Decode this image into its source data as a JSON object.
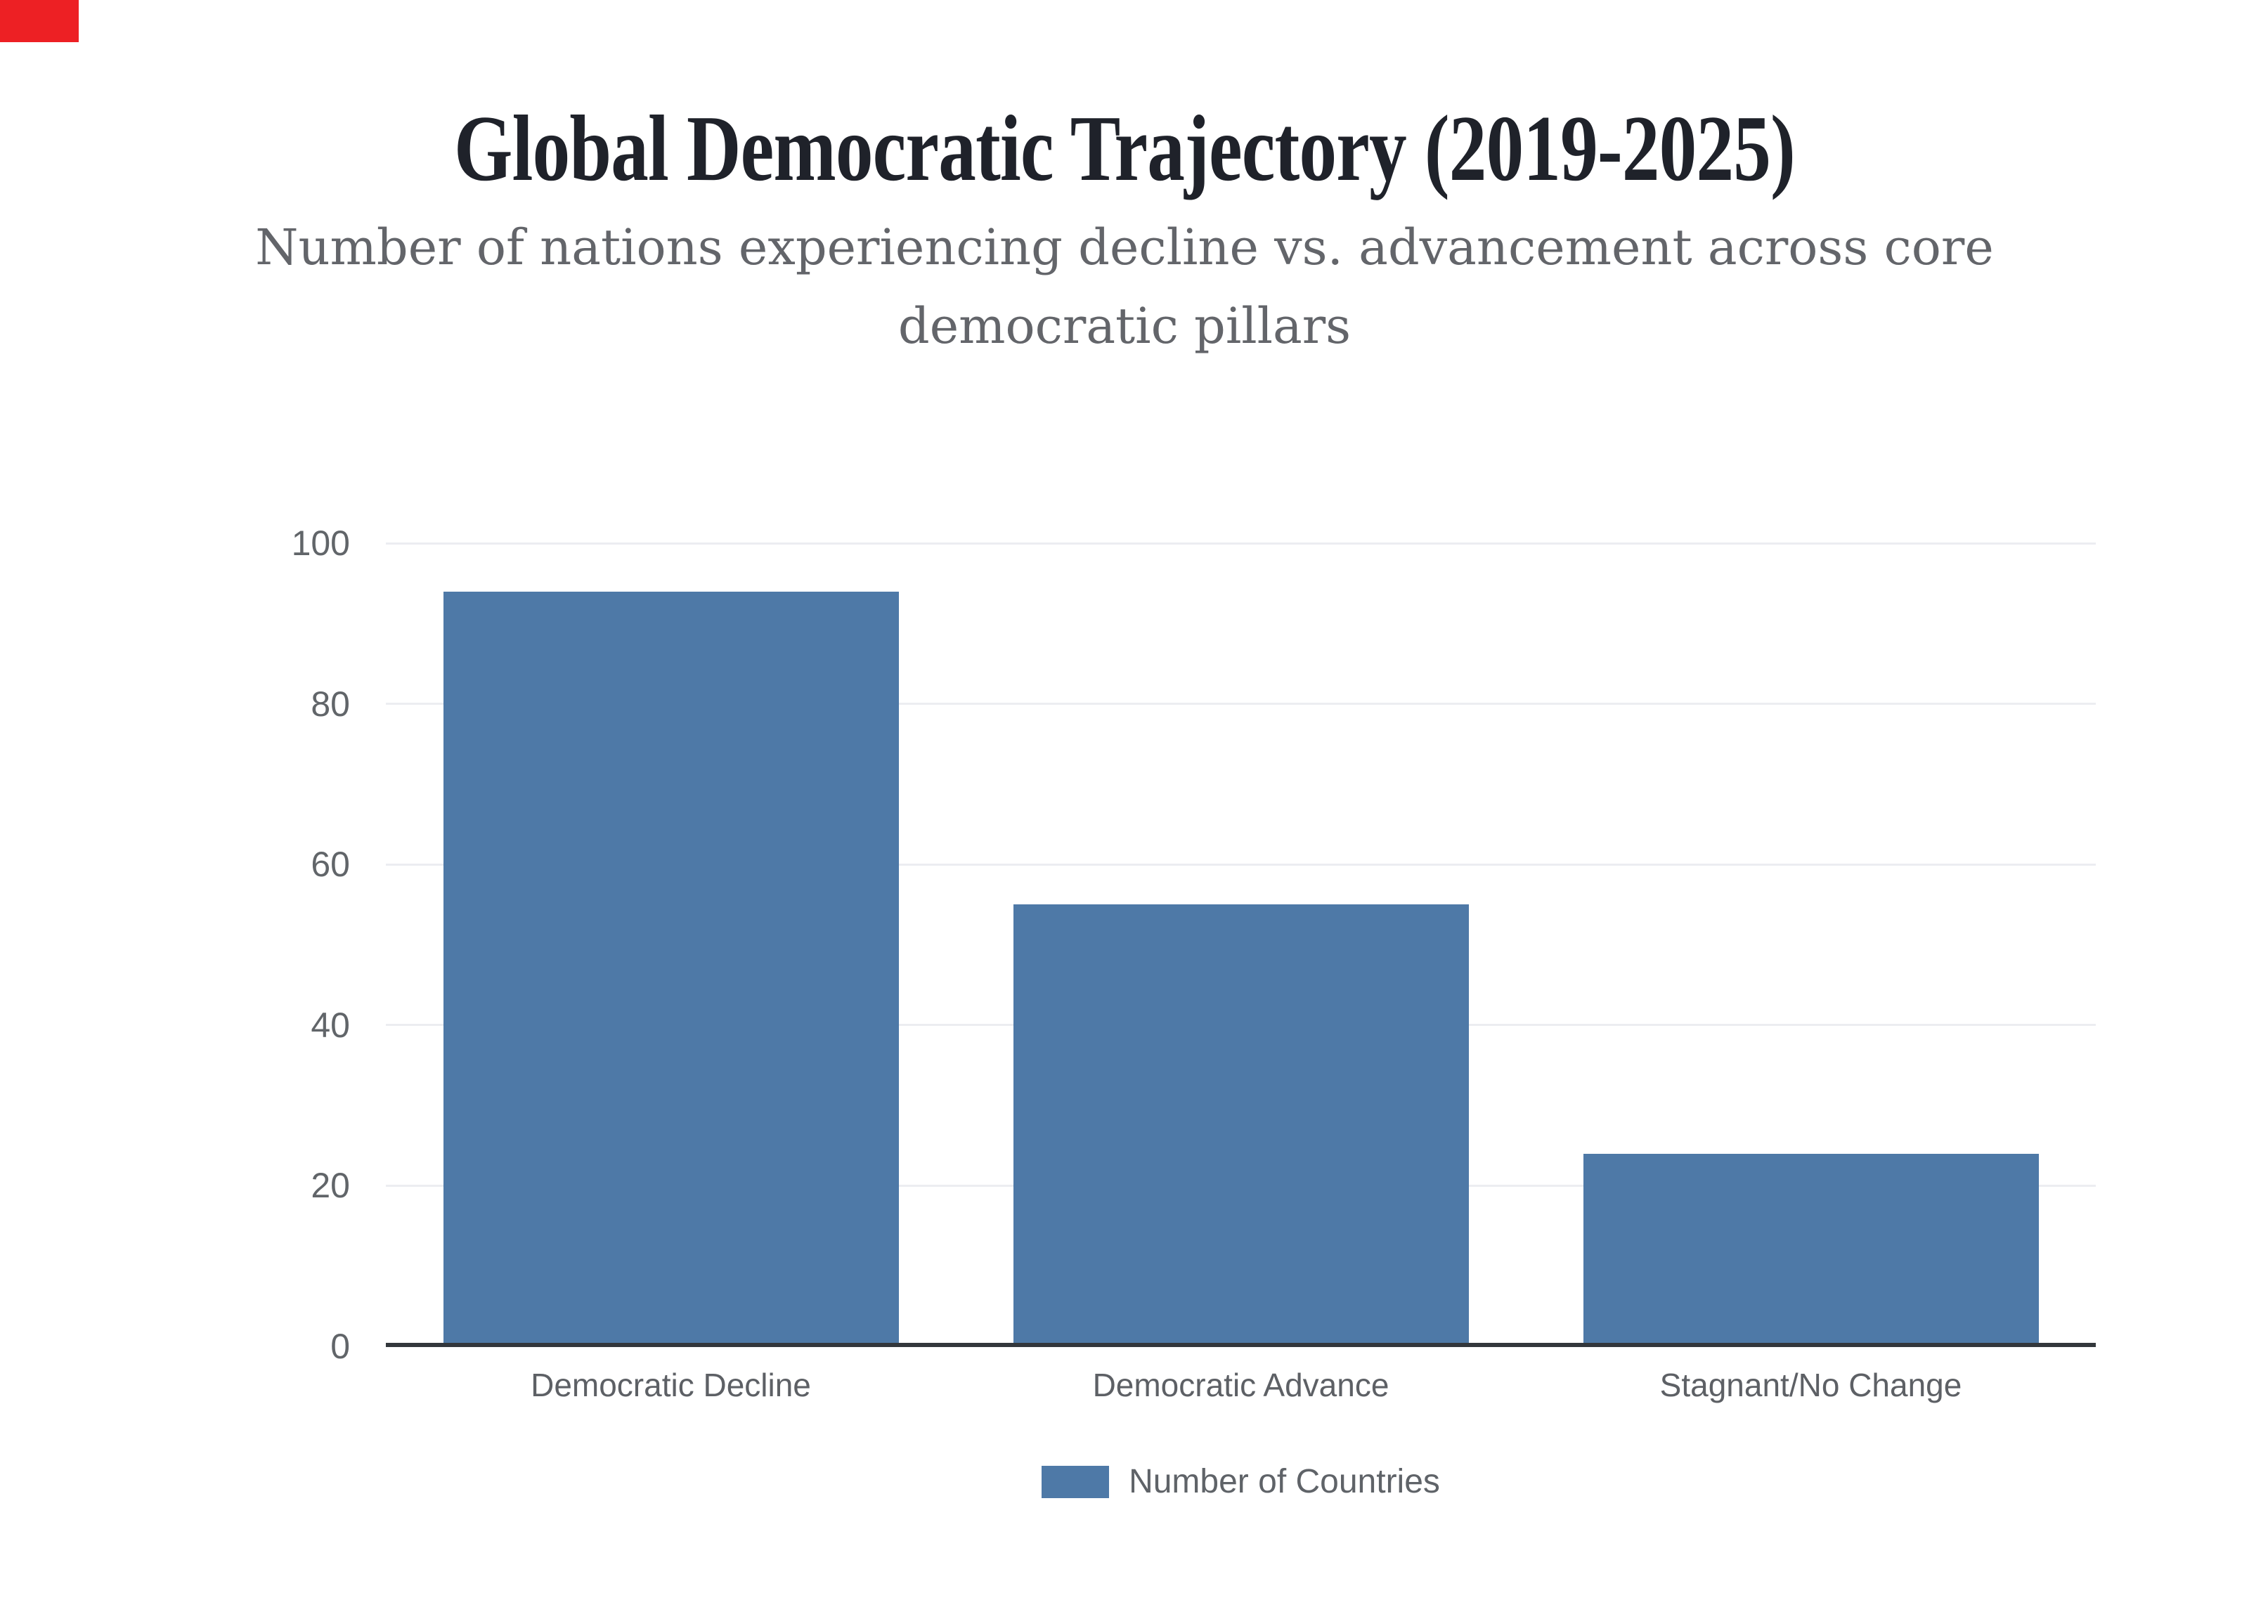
{
  "page": {
    "background": "#ffffff"
  },
  "corner_marker": {
    "color": "#ed2024"
  },
  "header": {
    "title": "Global Democratic Trajectory (2019-2025)",
    "subtitle_line1": "Number of nations experiencing decline vs. advancement across core",
    "subtitle_line2": "democratic pillars"
  },
  "chart_data": {
    "type": "bar",
    "title": "Global Democratic Trajectory (2019-2025)",
    "subtitle": "Number of nations experiencing decline vs. advancement across core democratic pillars",
    "categories": [
      "Democratic Decline",
      "Democratic Advance",
      "Stagnant/No Change"
    ],
    "series": [
      {
        "name": "Number of Countries",
        "values": [
          94,
          55,
          24
        ]
      }
    ],
    "ylim": [
      0,
      100
    ],
    "yticks": [
      0,
      20,
      40,
      60,
      80,
      100
    ],
    "grid": "horizontal-light",
    "legend_position": "bottom-center",
    "bar_color": "#4e79a7"
  },
  "legend": {
    "label": "Number of Countries",
    "swatch_color": "#4e79a7"
  },
  "colors": {
    "title_text": "#1f222a",
    "subtitle_text": "#63656a",
    "ytick_text": "#616569",
    "xcat_text": "#5d6065",
    "legend_text": "#5f6368",
    "gridline": "#ecedf1",
    "axis_line": "#33373c",
    "bar_fill": "#4e79a7",
    "corner_marker": "#ed2024"
  }
}
